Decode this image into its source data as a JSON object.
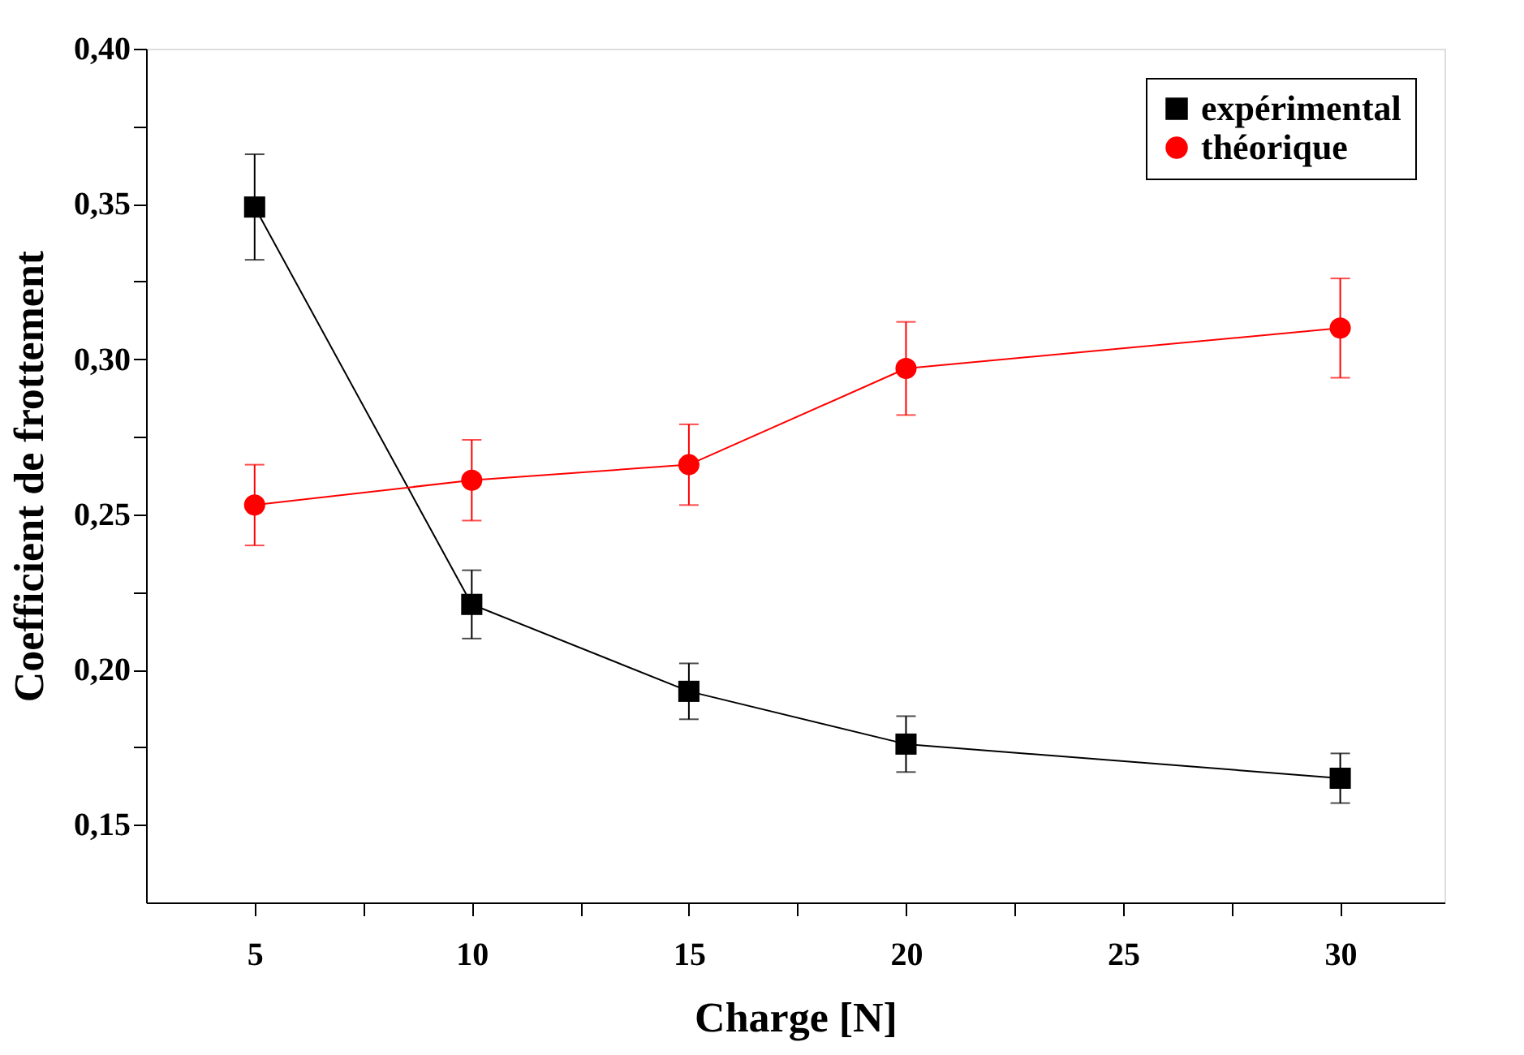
{
  "chart_data": {
    "type": "line",
    "xlabel": "Charge [N]",
    "ylabel": "Coefficient de frottement",
    "x": [
      5,
      10,
      15,
      20,
      30
    ],
    "series": [
      {
        "name": "expérimental",
        "color": "#000000",
        "marker": "square",
        "values": [
          0.349,
          0.221,
          0.193,
          0.176,
          0.165
        ],
        "errors": [
          0.017,
          0.011,
          0.009,
          0.009,
          0.008
        ]
      },
      {
        "name": "théorique",
        "color": "#ff0000",
        "marker": "circle",
        "values": [
          0.253,
          0.261,
          0.266,
          0.297,
          0.31
        ],
        "errors": [
          0.013,
          0.013,
          0.013,
          0.015,
          0.016
        ]
      }
    ],
    "xlim": [
      2.5,
      32.4
    ],
    "xticks": [
      5,
      {
        "value": 7.5,
        "label": null
      },
      10,
      {
        "value": 12.5,
        "label": null
      },
      15,
      {
        "value": 17.5,
        "label": null
      },
      20,
      {
        "value": 22.5,
        "label": null
      },
      25,
      {
        "value": 27.5,
        "label": null
      },
      30
    ],
    "ylim": [
      0.125,
      0.4
    ],
    "yticks": [
      {
        "value": 0.15,
        "label": "0,15"
      },
      {
        "value": 0.175,
        "label": null
      },
      {
        "value": 0.2,
        "label": "0,20"
      },
      {
        "value": 0.225,
        "label": null
      },
      {
        "value": 0.25,
        "label": "0,25"
      },
      {
        "value": 0.275,
        "label": null
      },
      {
        "value": 0.3,
        "label": "0,30"
      },
      {
        "value": 0.325,
        "label": null
      },
      {
        "value": 0.35,
        "label": "0,35"
      },
      {
        "value": 0.375,
        "label": null
      },
      {
        "value": 0.4,
        "label": "0,40"
      }
    ],
    "grid": false,
    "legend": "top right",
    "line_style": "solid"
  }
}
